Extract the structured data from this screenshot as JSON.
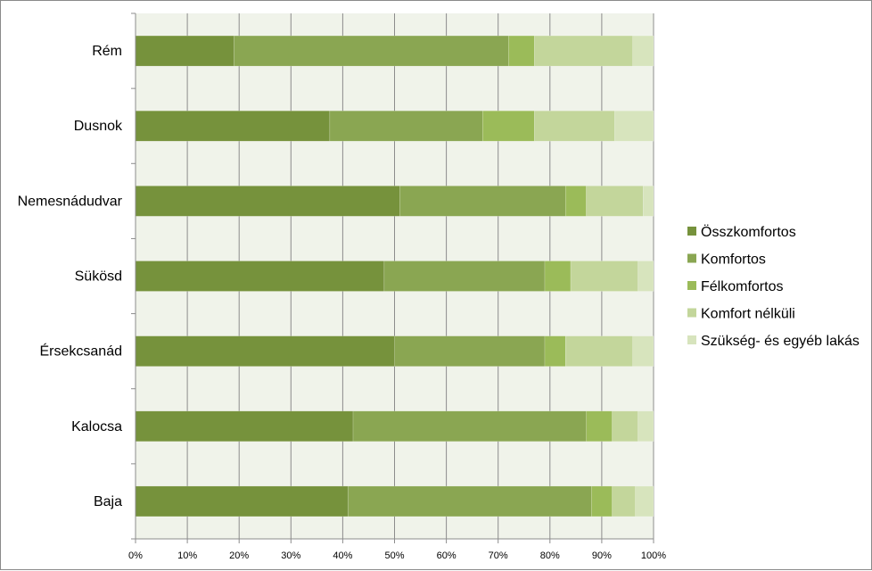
{
  "chart_data": {
    "type": "bar",
    "orientation": "horizontal",
    "stacked": "percent",
    "title": "",
    "xlabel": "",
    "ylabel": "",
    "xlim": [
      0,
      100
    ],
    "x_ticks": [
      "0%",
      "10%",
      "20%",
      "30%",
      "40%",
      "50%",
      "60%",
      "70%",
      "80%",
      "90%",
      "100%"
    ],
    "grid": true,
    "legend_position": "right",
    "categories": [
      "Rém",
      "Dusnok",
      "Nemesnádudvar",
      "Sükösd",
      "Érsekcsanád",
      "Kalocsa",
      "Baja"
    ],
    "series": [
      {
        "name": "Összkomfortos",
        "color": "#76923c",
        "values": [
          19,
          37.5,
          51,
          48,
          50,
          42,
          41
        ]
      },
      {
        "name": "Komfortos",
        "color": "#8aa652",
        "values": [
          53,
          29.5,
          32,
          31,
          29,
          45,
          47
        ]
      },
      {
        "name": "Félkomfortos",
        "color": "#9bbb59",
        "values": [
          5,
          10,
          4,
          5,
          4,
          5,
          4
        ]
      },
      {
        "name": "Komfort nélküli",
        "color": "#c3d69b",
        "values": [
          19,
          15.5,
          11,
          13,
          13,
          5,
          4.5
        ]
      },
      {
        "name": "Szükség- és egyéb lakás",
        "color": "#d7e4bd",
        "values": [
          4,
          7.5,
          2,
          3,
          4,
          3,
          3.5
        ]
      }
    ],
    "plot_background": "#f0f3ea",
    "gridline_color": "#8c8c8c"
  }
}
